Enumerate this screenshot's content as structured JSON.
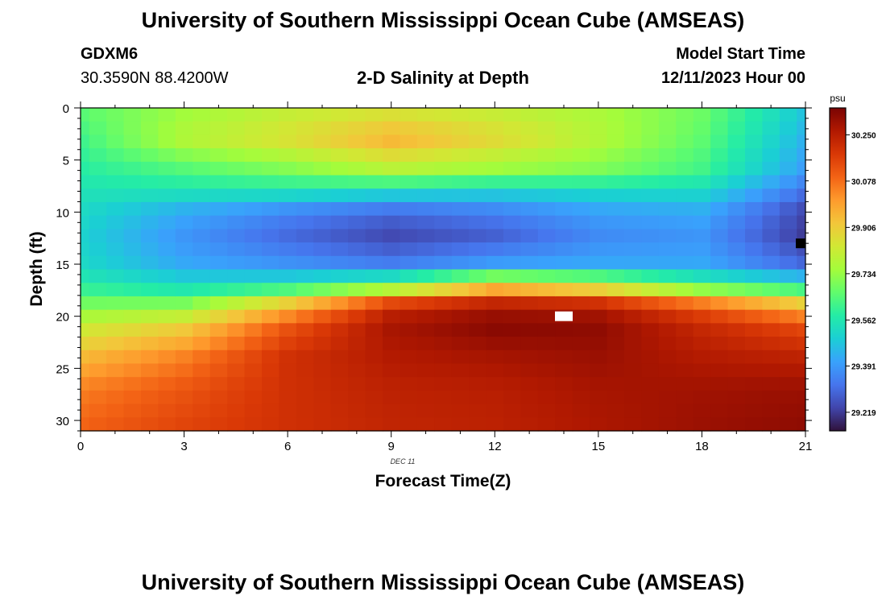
{
  "header": {
    "title": "University of Southern Mississippi Ocean Cube (AMSEAS)",
    "station": "GDXM6",
    "coordinates": "30.3590N  88.4200W",
    "subtitle": "2-D Salinity at Depth",
    "model_start_label": "Model Start Time",
    "model_start_value": "12/11/2023 Hour 00"
  },
  "footer": {
    "repeated_title": "University of Southern Mississippi Ocean Cube (AMSEAS)"
  },
  "chart_data": {
    "type": "heatmap",
    "title": "2-D Salinity at Depth",
    "xlabel": "Forecast Time(Z)",
    "ylabel": "Depth (ft)",
    "date_label": "DEC 11",
    "xlim": [
      0,
      21
    ],
    "ylim": [
      0,
      31
    ],
    "x_ticks": [
      0,
      3,
      6,
      9,
      12,
      15,
      18,
      21
    ],
    "y_ticks": [
      0,
      5,
      10,
      15,
      20,
      25,
      30
    ],
    "colorbar": {
      "unit": "psu",
      "ticks": [
        "30.250",
        "30.078",
        "29.906",
        "29.734",
        "29.562",
        "29.391",
        "29.219"
      ],
      "tick_values": [
        30.25,
        30.078,
        29.906,
        29.734,
        29.562,
        29.391,
        29.219
      ],
      "range": [
        29.15,
        30.35
      ],
      "colormap": [
        "#30123b",
        "#4145ab",
        "#4675ed",
        "#39a2fc",
        "#1bcfd4",
        "#24eca6",
        "#61fc6c",
        "#a4fc3b",
        "#d1e834",
        "#f3c63a",
        "#fe9b2d",
        "#f36315",
        "#d93806",
        "#b11901",
        "#7a0403"
      ]
    },
    "grid": {
      "time_steps": 43,
      "time_step_hours": 0.5,
      "depth_bins": 24
    },
    "profiles": [
      {
        "time": 0,
        "depths": [
          0,
          3,
          6,
          8,
          10,
          12.5,
          15,
          17,
          19,
          21,
          24,
          27,
          31
        ],
        "salinity": [
          29.66,
          29.62,
          29.58,
          29.55,
          29.52,
          29.5,
          29.52,
          29.58,
          29.7,
          29.82,
          29.95,
          30.05,
          30.1
        ]
      },
      {
        "time": 3,
        "depths": [
          0,
          3,
          6,
          8,
          10,
          12.5,
          15,
          17,
          19,
          21,
          24,
          27,
          31
        ],
        "salinity": [
          29.74,
          29.78,
          29.64,
          29.55,
          29.42,
          29.38,
          29.42,
          29.52,
          29.72,
          29.9,
          30.05,
          30.12,
          30.16
        ]
      },
      {
        "time": 6,
        "depths": [
          0,
          3,
          6,
          8,
          10,
          12.5,
          15,
          17,
          19,
          21,
          24,
          27,
          31
        ],
        "salinity": [
          29.8,
          29.86,
          29.7,
          29.55,
          29.35,
          29.3,
          29.38,
          29.55,
          29.95,
          30.12,
          30.2,
          30.2,
          30.2
        ]
      },
      {
        "time": 9,
        "depths": [
          0,
          3,
          6,
          8,
          10,
          12.5,
          15,
          17,
          19,
          21,
          24,
          27,
          31
        ],
        "salinity": [
          29.83,
          29.96,
          29.78,
          29.52,
          29.3,
          29.24,
          29.34,
          29.66,
          30.22,
          30.28,
          30.26,
          30.24,
          30.23
        ]
      },
      {
        "time": 12,
        "depths": [
          0,
          3,
          6,
          8,
          10,
          12.5,
          15,
          17,
          19,
          21,
          24,
          27,
          31
        ],
        "salinity": [
          29.8,
          29.88,
          29.74,
          29.5,
          29.34,
          29.28,
          29.4,
          29.9,
          30.28,
          30.33,
          30.28,
          30.25,
          30.24
        ]
      },
      {
        "time": 15,
        "depths": [
          0,
          3,
          6,
          8,
          10,
          12.5,
          15,
          17,
          19,
          21,
          24,
          27,
          31
        ],
        "salinity": [
          29.76,
          29.78,
          29.7,
          29.52,
          29.4,
          29.36,
          29.42,
          29.8,
          30.26,
          30.32,
          30.3,
          30.28,
          30.27
        ]
      },
      {
        "time": 18,
        "depths": [
          0,
          3,
          6,
          8,
          10,
          12.5,
          15,
          17,
          19,
          21,
          24,
          27,
          31
        ],
        "salinity": [
          29.68,
          29.66,
          29.62,
          29.52,
          29.42,
          29.38,
          29.42,
          29.62,
          30.12,
          30.22,
          30.26,
          30.29,
          30.3
        ]
      },
      {
        "time": 21,
        "depths": [
          0,
          3,
          6,
          8,
          10,
          12.5,
          15,
          17,
          19,
          21,
          24,
          27,
          31
        ],
        "salinity": [
          29.48,
          29.44,
          29.4,
          29.32,
          29.24,
          29.22,
          29.3,
          29.54,
          29.95,
          30.14,
          30.24,
          30.3,
          30.32
        ]
      }
    ],
    "markers": [
      {
        "type": "white-patch",
        "time": 14.0,
        "depth": 20.0
      },
      {
        "type": "black-patch",
        "time": 20.9,
        "depth": 13.0
      }
    ]
  }
}
